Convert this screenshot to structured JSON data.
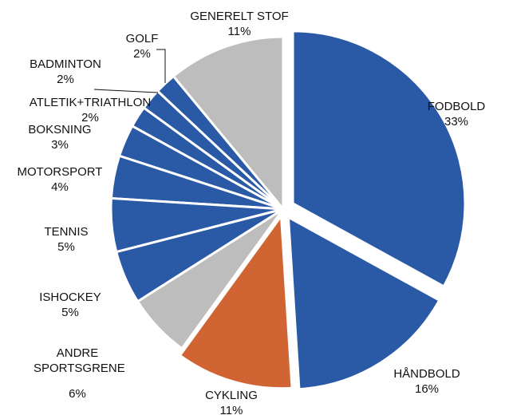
{
  "chart_data": {
    "type": "pie",
    "categories": [
      "FODBOLD",
      "HÅNDBOLD",
      "CYKLING",
      "ANDRE SPORTSGRENE",
      "ISHOCKEY",
      "TENNIS",
      "MOTORSPORT",
      "BOKSNING",
      "ATLETIK+TRIATHLON",
      "BADMINTON",
      "GOLF",
      "GENERELT STOF"
    ],
    "values": [
      33,
      16,
      11,
      6,
      5,
      5,
      4,
      3,
      2,
      2,
      2,
      11
    ],
    "value_labels": [
      "33%",
      "16%",
      "11%",
      "6%",
      "5%",
      "5%",
      "4%",
      "3%",
      "2%",
      "2%",
      "2%",
      "11%"
    ],
    "colors": [
      "#2a5aa6",
      "#2a5aa6",
      "#d06533",
      "#bdbdbd",
      "#2a5aa6",
      "#2a5aa6",
      "#2a5aa6",
      "#2a5aa6",
      "#2a5aa6",
      "#2a5aa6",
      "#2a5aa6",
      "#bdbdbd"
    ]
  }
}
